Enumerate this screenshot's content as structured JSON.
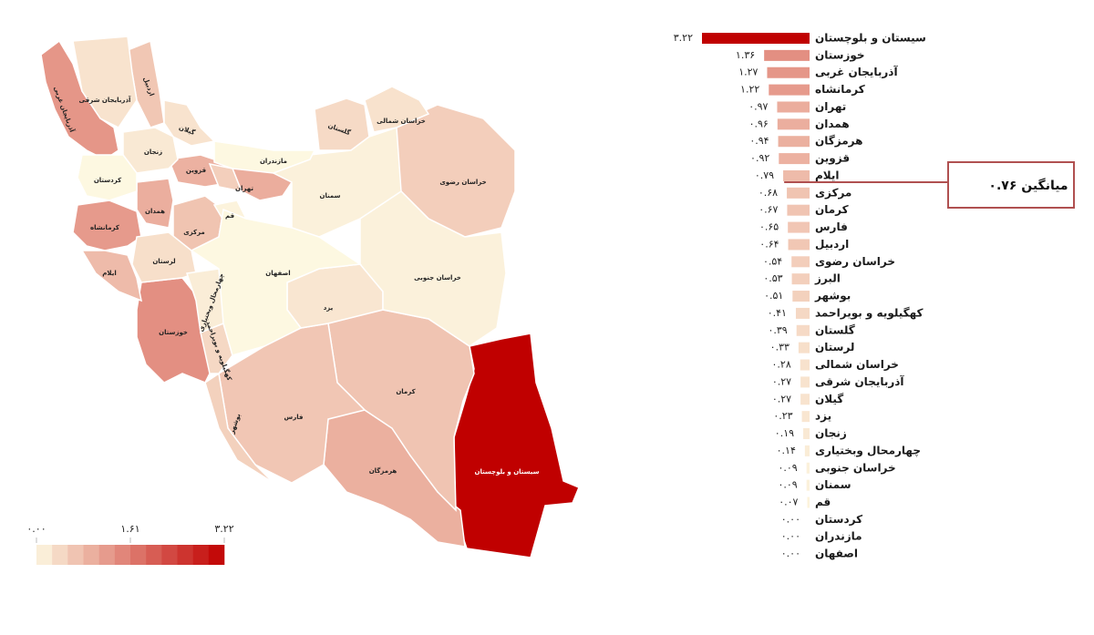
{
  "chart_data": {
    "type": "bar",
    "categories": [
      "سیستان و بلوچستان",
      "خوزستان",
      "آذربایجان غربی",
      "کرمانشاه",
      "تهران",
      "همدان",
      "هرمزگان",
      "قزوین",
      "ایلام",
      "مرکزی",
      "کرمان",
      "فارس",
      "اردبیل",
      "خراسان رضوی",
      "البرز",
      "بوشهر",
      "کهگیلویه و بویراحمد",
      "گلستان",
      "لرستان",
      "خراسان شمالی",
      "آذربایجان شرقی",
      "گیلان",
      "یزد",
      "زنجان",
      "چهارمحال وبختیاری",
      "خراسان جنوبی",
      "سمنان",
      "قم",
      "کردستان",
      "مازندران",
      "اصفهان"
    ],
    "values": [
      3.22,
      1.36,
      1.27,
      1.22,
      0.97,
      0.96,
      0.94,
      0.92,
      0.79,
      0.68,
      0.67,
      0.65,
      0.64,
      0.54,
      0.53,
      0.51,
      0.41,
      0.39,
      0.33,
      0.28,
      0.27,
      0.27,
      0.23,
      0.19,
      0.14,
      0.09,
      0.09,
      0.07,
      0,
      0,
      0
    ],
    "value_labels": [
      "۳.۲۲",
      "۱.۳۶",
      "۱.۲۷",
      "۱.۲۲",
      "۰.۹۷",
      "۰.۹۶",
      "۰.۹۴",
      "۰.۹۲",
      "۰.۷۹",
      "۰.۶۸",
      "۰.۶۷",
      "۰.۶۵",
      "۰.۶۴",
      "۰.۵۴",
      "۰.۵۳",
      "۰.۵۱",
      "۰.۴۱",
      "۰.۳۹",
      "۰.۳۳",
      "۰.۲۸",
      "۰.۲۷",
      "۰.۲۷",
      "۰.۲۳",
      "۰.۱۹",
      "۰.۱۴",
      "۰.۰۹",
      "۰.۰۹",
      "۰.۰۷",
      "۰.۰۰",
      "۰.۰۰",
      "۰.۰۰"
    ],
    "colorlim": [
      0,
      3.22
    ],
    "color_low": "#fdf8e1",
    "color_high": "#c00000",
    "legend_ticks": [
      {
        "value": 0,
        "label": "۰.۰۰"
      },
      {
        "value": 1.61,
        "label": "۱.۶۱"
      },
      {
        "value": 3.22,
        "label": "۳.۲۲"
      }
    ],
    "mean": {
      "value": 0.76,
      "label": "میانگین ۰.۷۶"
    }
  }
}
